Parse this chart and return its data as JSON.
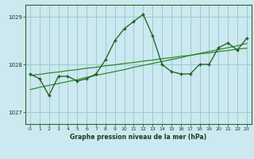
{
  "title": "Graphe pression niveau de la mer (hPa)",
  "bg_color": "#cce8f0",
  "grid_color": "#99cccc",
  "line_color_main": "#1a5c1a",
  "line_color_smooth1": "#2d8b2d",
  "line_color_smooth2": "#2d8b2d",
  "xlim": [
    -0.5,
    23.5
  ],
  "ylim": [
    1026.75,
    1029.25
  ],
  "yticks": [
    1027,
    1028,
    1029
  ],
  "xticks": [
    0,
    1,
    2,
    3,
    4,
    5,
    6,
    7,
    8,
    9,
    10,
    11,
    12,
    13,
    14,
    15,
    16,
    17,
    18,
    19,
    20,
    21,
    22,
    23
  ],
  "hourly_data": [
    1027.8,
    1027.7,
    1027.35,
    1027.75,
    1027.75,
    1027.65,
    1027.7,
    1027.8,
    1028.1,
    1028.5,
    1028.75,
    1028.9,
    1029.05,
    1028.6,
    1028.0,
    1027.85,
    1027.8,
    1027.8,
    1028.0,
    1028.0,
    1028.35,
    1028.45,
    1028.3,
    1028.55
  ],
  "smooth1": [
    1027.77,
    1027.79,
    1027.82,
    1027.84,
    1027.87,
    1027.89,
    1027.92,
    1027.94,
    1027.97,
    1027.99,
    1028.02,
    1028.04,
    1028.07,
    1028.09,
    1028.12,
    1028.14,
    1028.17,
    1028.19,
    1028.22,
    1028.24,
    1028.27,
    1028.29,
    1028.32,
    1028.34
  ],
  "smooth2": [
    1027.47,
    1027.52,
    1027.56,
    1027.6,
    1027.64,
    1027.68,
    1027.73,
    1027.77,
    1027.81,
    1027.85,
    1027.89,
    1027.94,
    1027.98,
    1028.02,
    1028.06,
    1028.1,
    1028.14,
    1028.19,
    1028.23,
    1028.27,
    1028.31,
    1028.35,
    1028.39,
    1028.44
  ]
}
